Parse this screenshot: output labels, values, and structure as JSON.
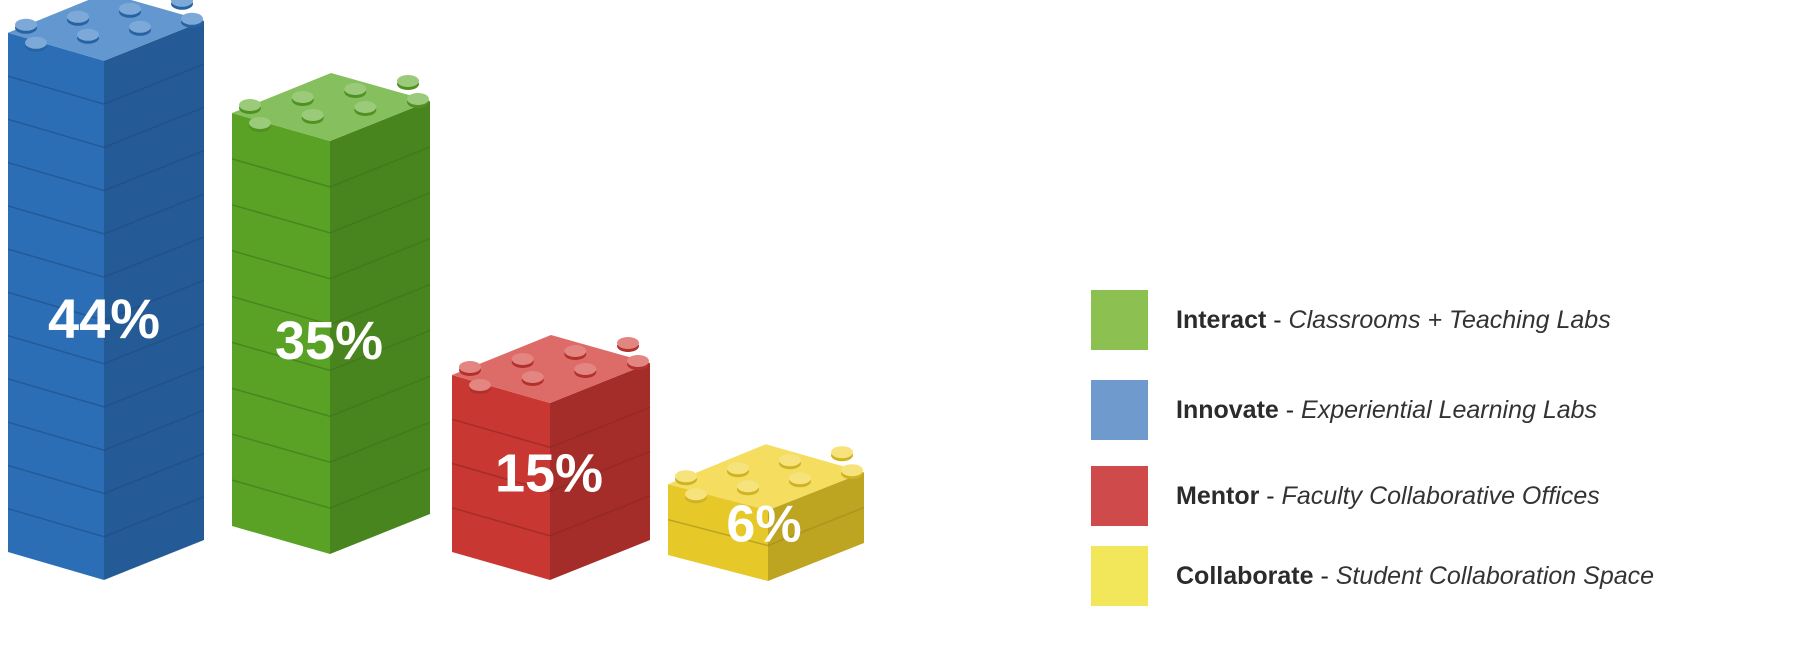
{
  "chart_data": {
    "type": "bar",
    "categories": [
      "Innovate",
      "Interact",
      "Mentor",
      "Collaborate"
    ],
    "values": [
      44,
      35,
      15,
      6
    ],
    "value_labels": [
      "44%",
      "35%",
      "15%",
      "6%"
    ],
    "colors": [
      "#2e74c0",
      "#5eaa28",
      "#d23a34",
      "#f2d22a"
    ],
    "unit": "%",
    "style": "isometric stacked toy bricks",
    "legend_placement": "right",
    "legend": [
      {
        "category": "Interact",
        "name": "Interact",
        "separator": " - ",
        "description": "Classrooms + Teaching Labs",
        "color": "#8cc152"
      },
      {
        "category": "Innovate",
        "name": "Innovate",
        "separator": " - ",
        "description": "Experiential Learning Labs",
        "color": "#6f9acd"
      },
      {
        "category": "Mentor",
        "name": "Mentor",
        "separator": " - ",
        "description": "Faculty Collaborative Offices",
        "color": "#cf4a4a"
      },
      {
        "category": "Collaborate",
        "name": "Collaborate",
        "separator": " - ",
        "description": "Student Collaboration Space",
        "color": "#f2e75a"
      }
    ]
  }
}
